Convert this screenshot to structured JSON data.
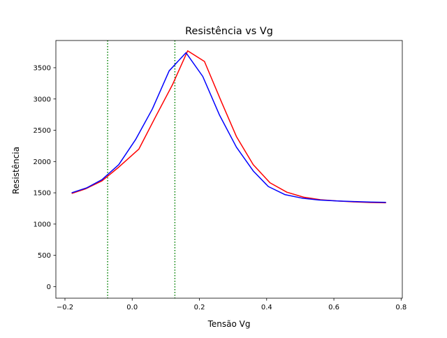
{
  "chart_data": {
    "type": "line",
    "title": "Resistência vs Vg",
    "xlabel": "Tensão Vg",
    "ylabel": "Resistência",
    "xlim": [
      -0.227,
      0.8035
    ],
    "ylim": [
      -185,
      3935
    ],
    "xticks": [
      {
        "value": -0.2,
        "label": "−0.2"
      },
      {
        "value": 0.0,
        "label": "0.0"
      },
      {
        "value": 0.2,
        "label": "0.2"
      },
      {
        "value": 0.4,
        "label": "0.4"
      },
      {
        "value": 0.6,
        "label": "0.6"
      },
      {
        "value": 0.8,
        "label": "0.8"
      }
    ],
    "yticks": [
      {
        "value": 0,
        "label": "0"
      },
      {
        "value": 500,
        "label": "500"
      },
      {
        "value": 1000,
        "label": "1000"
      },
      {
        "value": 1500,
        "label": "1500"
      },
      {
        "value": 2000,
        "label": "2000"
      },
      {
        "value": 2500,
        "label": "2500"
      },
      {
        "value": 3000,
        "label": "3000"
      },
      {
        "value": 3500,
        "label": "3500"
      }
    ],
    "grid": false,
    "legend": "none",
    "series": [
      {
        "color": "#ff0000",
        "x": [
          -0.18,
          -0.14,
          -0.09,
          -0.04,
          0.02,
          0.07,
          0.12,
          0.165,
          0.215,
          0.265,
          0.31,
          0.36,
          0.41,
          0.46,
          0.51,
          0.56,
          0.61,
          0.66,
          0.71,
          0.755
        ],
        "y": [
          1490,
          1560,
          1690,
          1910,
          2200,
          2720,
          3230,
          3770,
          3600,
          2960,
          2400,
          1950,
          1660,
          1510,
          1430,
          1390,
          1370,
          1355,
          1345,
          1340
        ]
      },
      {
        "color": "#0000ff",
        "x": [
          -0.18,
          -0.135,
          -0.09,
          -0.04,
          0.01,
          0.06,
          0.11,
          0.16,
          0.21,
          0.26,
          0.31,
          0.36,
          0.405,
          0.455,
          0.505,
          0.555,
          0.61,
          0.66,
          0.71,
          0.755
        ],
        "y": [
          1500,
          1580,
          1710,
          1950,
          2350,
          2840,
          3450,
          3740,
          3360,
          2740,
          2230,
          1850,
          1600,
          1470,
          1415,
          1385,
          1370,
          1360,
          1352,
          1348
        ]
      }
    ],
    "vlines": [
      {
        "x": -0.073,
        "color": "#008000",
        "style": "dotted"
      },
      {
        "x": 0.127,
        "color": "#008000",
        "style": "dotted"
      }
    ]
  }
}
